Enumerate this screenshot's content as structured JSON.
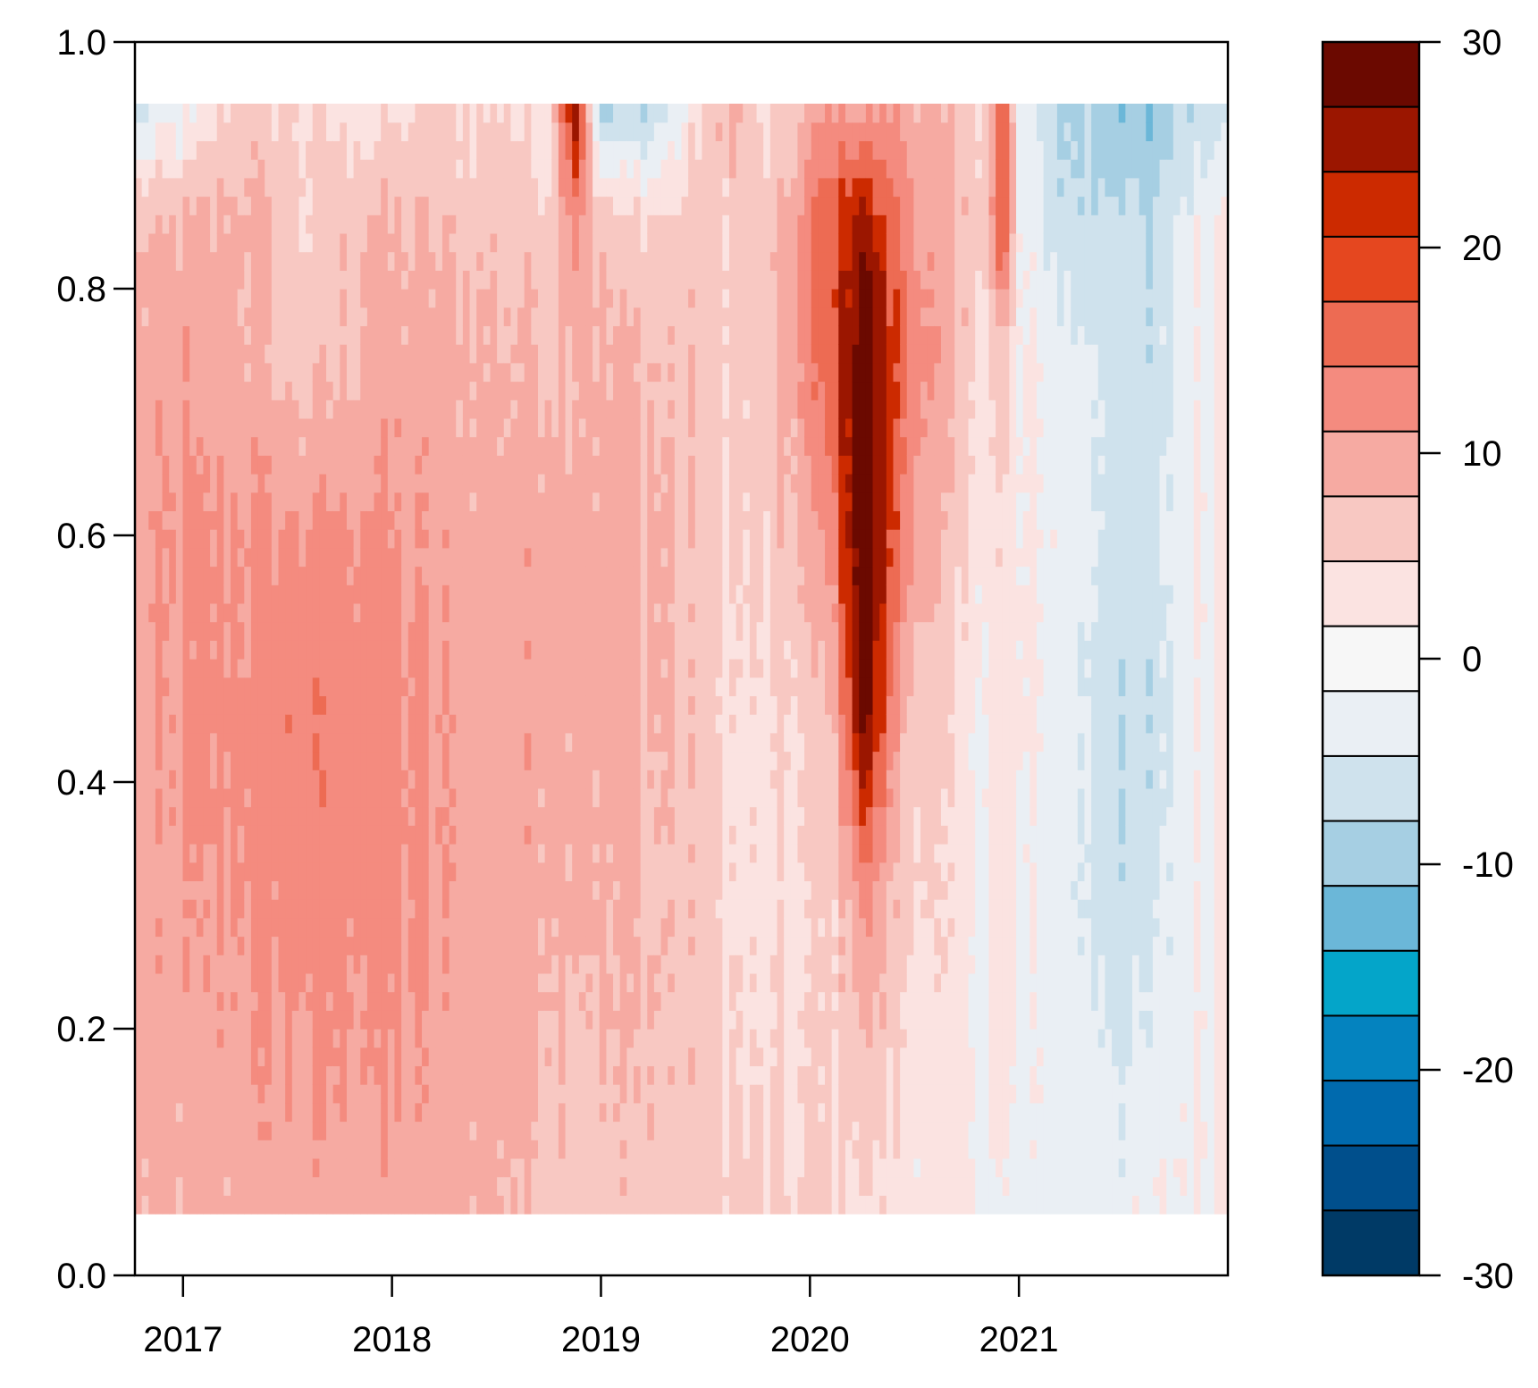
{
  "chart_data": {
    "type": "heatmap",
    "title": "",
    "xlabel": "",
    "ylabel": "",
    "x_range": [
      2016.77,
      2022.0
    ],
    "y_range": [
      0.0,
      1.0
    ],
    "data_y_extent": [
      0.05,
      0.95
    ],
    "x_ticks": [
      2017,
      2018,
      2019,
      2020,
      2021
    ],
    "x_tick_labels": [
      "2017",
      "2018",
      "2019",
      "2020",
      "2021"
    ],
    "y_ticks": [
      0.0,
      0.2,
      0.4,
      0.6,
      0.8,
      1.0
    ],
    "y_tick_labels": [
      "0.0",
      "0.2",
      "0.4",
      "0.6",
      "0.8",
      "1.0"
    ],
    "colorbar": {
      "range": [
        -30,
        30
      ],
      "breaks": [
        -30,
        -26.25,
        -22.5,
        -18.75,
        -15,
        -11.25,
        -7.5,
        -3.75,
        0,
        3.75,
        7.5,
        11.25,
        15,
        18.75,
        22.5,
        26.25,
        30
      ],
      "colors": [
        "#003a66",
        "#004f8c",
        "#006aae",
        "#0483bf",
        "#04a5c9",
        "#6bb7d8",
        "#a6cfe3",
        "#cfe2ed",
        "#eaeff4",
        "#f7f7f7",
        "#fbe3e1",
        "#f8c8c2",
        "#f6aaa2",
        "#f48b7f",
        "#ed6b53",
        "#e5471f",
        "#cc2a00",
        "#9b1600",
        "#6b0900"
      ],
      "ticks": [
        30,
        20,
        10,
        0,
        -10,
        -20,
        -30
      ],
      "tick_labels": [
        "30",
        "20",
        "10",
        "0",
        "-10",
        "-20",
        "-30"
      ]
    },
    "x_anchors": [
      2016.77,
      2017.0,
      2017.3,
      2017.6,
      2017.9,
      2018.2,
      2018.5,
      2018.75,
      2018.88,
      2019.0,
      2019.3,
      2019.5,
      2019.62,
      2019.8,
      2020.1,
      2020.25,
      2020.45,
      2020.7,
      2020.85,
      2020.92,
      2021.0,
      2021.2,
      2021.5,
      2021.62,
      2021.75,
      2022.0
    ],
    "y_anchors": [
      0.05,
      0.15,
      0.3,
      0.45,
      0.6,
      0.75,
      0.85,
      0.95
    ],
    "z_grid": [
      [
        8,
        8,
        9,
        9,
        9,
        9,
        8,
        7,
        7,
        6,
        6,
        5,
        5,
        4,
        4,
        3,
        2,
        1,
        0,
        -1,
        -1,
        -2,
        -2,
        -1,
        0,
        1
      ],
      [
        9,
        9,
        10,
        11,
        11,
        10,
        9,
        8,
        7,
        7,
        7,
        5,
        4,
        3,
        4,
        6,
        3,
        1,
        0,
        2,
        -1,
        -1,
        -3,
        -3,
        -1,
        1
      ],
      [
        9,
        10,
        12,
        13,
        13,
        11,
        9,
        9,
        9,
        8,
        7,
        5,
        3,
        2,
        4,
        12,
        5,
        2,
        0,
        3,
        -1,
        -2,
        -6,
        -6,
        -2,
        1
      ],
      [
        10,
        11,
        13,
        14,
        13,
        11,
        9,
        10,
        9,
        9,
        8,
        5,
        3,
        2,
        6,
        28,
        8,
        2,
        0,
        3,
        0,
        -2,
        -7,
        -8,
        -3,
        2
      ],
      [
        10,
        11,
        12,
        12,
        12,
        10,
        9,
        10,
        10,
        9,
        8,
        6,
        4,
        4,
        12,
        32,
        14,
        4,
        2,
        3,
        0,
        -1,
        -5,
        -6,
        -2,
        2
      ],
      [
        9,
        10,
        8,
        5,
        9,
        9,
        8,
        8,
        8,
        8,
        7,
        6,
        5,
        5,
        18,
        30,
        16,
        7,
        3,
        6,
        0,
        -2,
        -5,
        -8,
        -3,
        2
      ],
      [
        7,
        8,
        9,
        4,
        8,
        7,
        6,
        6,
        14,
        6,
        5,
        6,
        4,
        5,
        18,
        26,
        14,
        6,
        6,
        22,
        0,
        -6,
        -6,
        -8,
        -3,
        1
      ],
      [
        -6,
        -2,
        6,
        4,
        2,
        4,
        4,
        2,
        28,
        -10,
        -6,
        4,
        10,
        2,
        12,
        10,
        10,
        6,
        4,
        20,
        -2,
        -8,
        -10,
        -12,
        -8,
        -4
      ]
    ]
  }
}
